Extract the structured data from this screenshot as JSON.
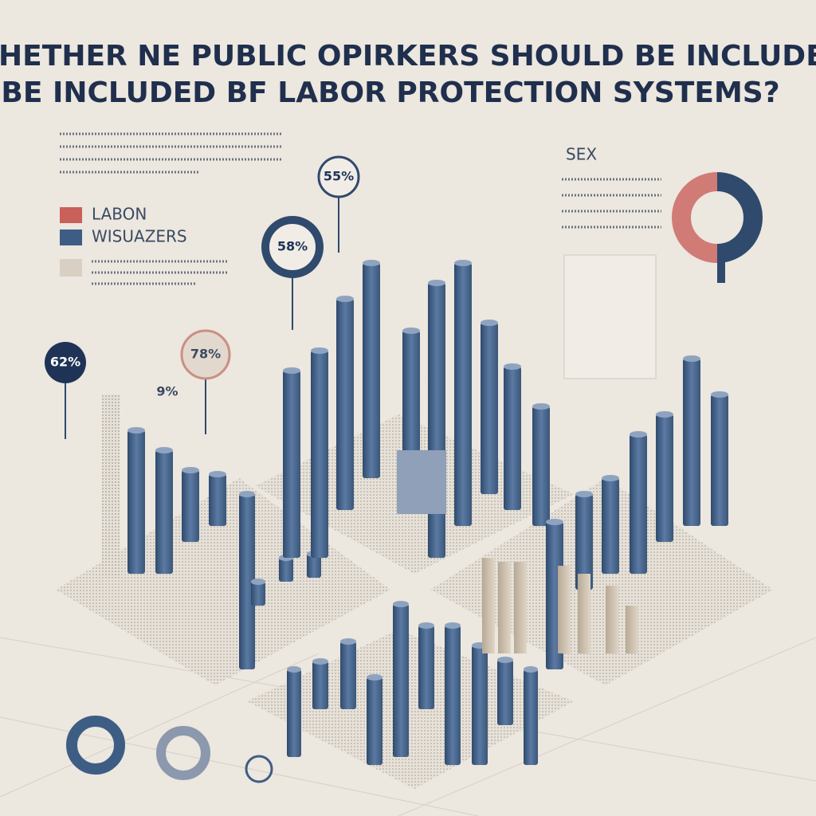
{
  "header": {
    "title": [
      "WHETHER NE PUBLIC OPIRKERS SHOULD BE INCLUDED",
      "BE INCLUDED BF LABOR PROTECTION SYSTEMS?"
    ]
  },
  "legend": [
    {
      "label": "LABON",
      "color": "#c9605a"
    },
    {
      "label": "WISUAZERS",
      "color": "#3e5d84"
    }
  ],
  "side_label": "SEX",
  "callouts": [
    {
      "text": "62%",
      "style": "dark"
    },
    {
      "text": "78%",
      "style": "light"
    },
    {
      "text": "58%",
      "style": "ring"
    },
    {
      "text": "55%",
      "style": "outline"
    },
    {
      "text": "9%",
      "style": "plain"
    }
  ]
}
